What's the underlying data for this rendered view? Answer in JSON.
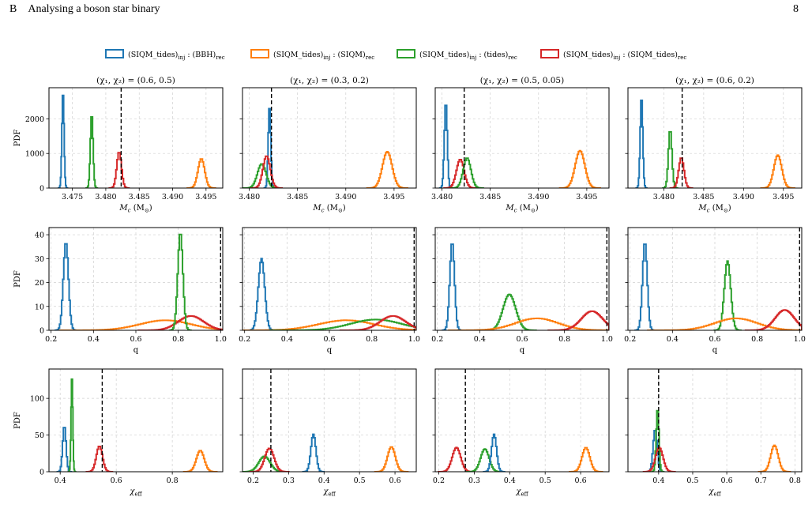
{
  "header": {
    "section_label": "B",
    "section_title": "Analysing a boson star binary",
    "page_number": "8"
  },
  "colors": {
    "bbh": "#1f77b4",
    "siqm": "#ff7f0e",
    "tides": "#2ca02c",
    "siqm_tides": "#d62728",
    "injection_line": "#000000",
    "grid": "#d0d0d0"
  },
  "legend": [
    {
      "key": "bbh",
      "text": "(SIQM_tides)inj : (BBH)rec"
    },
    {
      "key": "siqm",
      "text": "(SIQM_tides)inj : (SIQM)rec"
    },
    {
      "key": "tides",
      "text": "(SIQM_tides)inj : (tides)rec"
    },
    {
      "key": "siqm_tides",
      "text": "(SIQM_tides)inj : (SIQM_tides)rec"
    }
  ],
  "column_titles": [
    "(χ1, χ2) = (0.6, 0.5)",
    "(χ1, χ2) = (0.3, 0.2)",
    "(χ1, χ2) = (0.5, 0.05)",
    "(χ1, χ2) = (0.6, 0.2)"
  ],
  "chart_data": [
    {
      "type": "histogram",
      "row": 0,
      "col": 0,
      "title": "(χ1, χ2) = (0.6, 0.5)",
      "xlabel": "Mc (M⊙)",
      "ylabel": "PDF",
      "xlim": [
        3.4715,
        3.4975
      ],
      "ylim": [
        0,
        2900
      ],
      "xticks": [
        3.475,
        3.48,
        3.485,
        3.49,
        3.495
      ],
      "xtick_labels": [
        "3.475",
        "3.480",
        "3.485",
        "3.490",
        "3.495"
      ],
      "yticks": [
        0,
        1000,
        2000
      ],
      "ytick_labels": [
        "0",
        "1000",
        "2000"
      ],
      "injection": 3.4823,
      "series": [
        {
          "key": "bbh",
          "center": 3.4736,
          "width": 0.00016,
          "peak": 2800
        },
        {
          "key": "tides",
          "center": 3.4779,
          "width": 0.0002,
          "peak": 2150
        },
        {
          "key": "siqm_tides",
          "center": 3.482,
          "width": 0.00035,
          "peak": 1050
        },
        {
          "key": "siqm",
          "center": 3.4943,
          "width": 0.0005,
          "peak": 850
        }
      ]
    },
    {
      "type": "histogram",
      "row": 0,
      "col": 1,
      "title": "(χ1, χ2) = (0.3, 0.2)",
      "xlabel": "Mc (M⊙)",
      "ylabel": "",
      "xlim": [
        3.4793,
        3.4973
      ],
      "ylim": [
        0,
        2900
      ],
      "xticks": [
        3.48,
        3.485,
        3.49,
        3.495
      ],
      "xtick_labels": [
        "3.480",
        "3.485",
        "3.490",
        "3.495"
      ],
      "yticks": [
        0,
        1000,
        2000
      ],
      "ytick_labels": [],
      "injection": 3.4823,
      "series": [
        {
          "key": "bbh",
          "center": 3.4821,
          "width": 0.00013,
          "peak": 2400
        },
        {
          "key": "tides",
          "center": 3.4813,
          "width": 0.00045,
          "peak": 700
        },
        {
          "key": "siqm_tides",
          "center": 3.4818,
          "width": 0.00038,
          "peak": 930
        },
        {
          "key": "siqm",
          "center": 3.4943,
          "width": 0.0005,
          "peak": 1050
        }
      ]
    },
    {
      "type": "histogram",
      "row": 0,
      "col": 2,
      "title": "(χ1, χ2) = (0.5, 0.05)",
      "xlabel": "Mc (M⊙)",
      "ylabel": "",
      "xlim": [
        3.4793,
        3.4973
      ],
      "ylim": [
        0,
        2900
      ],
      "xticks": [
        3.48,
        3.485,
        3.49,
        3.495
      ],
      "xtick_labels": [
        "3.480",
        "3.485",
        "3.490",
        "3.495"
      ],
      "yticks": [
        0,
        1000,
        2000
      ],
      "ytick_labels": [],
      "injection": 3.4823,
      "series": [
        {
          "key": "bbh",
          "center": 3.4804,
          "width": 0.00015,
          "peak": 2500
        },
        {
          "key": "siqm_tides",
          "center": 3.4819,
          "width": 0.0004,
          "peak": 830
        },
        {
          "key": "tides",
          "center": 3.4826,
          "width": 0.0004,
          "peak": 870
        },
        {
          "key": "siqm",
          "center": 3.4943,
          "width": 0.0005,
          "peak": 1080
        }
      ]
    },
    {
      "type": "histogram",
      "row": 0,
      "col": 3,
      "title": "(χ1, χ2) = (0.6, 0.2)",
      "xlabel": "Mc (M⊙)",
      "ylabel": "",
      "xlim": [
        3.4755,
        3.4973
      ],
      "ylim": [
        0,
        2900
      ],
      "xticks": [
        3.48,
        3.485,
        3.49,
        3.495
      ],
      "xtick_labels": [
        "3.480",
        "3.485",
        "3.490",
        "3.495"
      ],
      "yticks": [
        0,
        1000,
        2000
      ],
      "ytick_labels": [],
      "injection": 3.4823,
      "series": [
        {
          "key": "bbh",
          "center": 3.4772,
          "width": 0.00016,
          "peak": 2650
        },
        {
          "key": "tides",
          "center": 3.4808,
          "width": 0.00022,
          "peak": 1700
        },
        {
          "key": "siqm_tides",
          "center": 3.4822,
          "width": 0.00033,
          "peak": 880
        },
        {
          "key": "siqm",
          "center": 3.4943,
          "width": 0.0005,
          "peak": 950
        }
      ]
    },
    {
      "type": "histogram",
      "row": 1,
      "col": 0,
      "title": "",
      "xlabel": "q",
      "ylabel": "PDF",
      "xlim": [
        0.19,
        1.01
      ],
      "ylim": [
        0,
        43
      ],
      "xticks": [
        0.2,
        0.4,
        0.6,
        0.8,
        1.0
      ],
      "xtick_labels": [
        "0.2",
        "0.4",
        "0.6",
        "0.8",
        "1.0"
      ],
      "yticks": [
        0,
        10,
        20,
        30,
        40
      ],
      "ytick_labels": [
        "0",
        "10",
        "20",
        "30",
        "40"
      ],
      "injection": 1.0,
      "series": [
        {
          "key": "bbh",
          "center": 0.27,
          "width": 0.012,
          "peak": 37
        },
        {
          "key": "siqm",
          "center": 0.74,
          "width": 0.12,
          "peak": 4.2
        },
        {
          "key": "siqm_tides",
          "center": 0.86,
          "width": 0.06,
          "peak": 6
        },
        {
          "key": "tides",
          "center": 0.81,
          "width": 0.012,
          "peak": 41
        }
      ]
    },
    {
      "type": "histogram",
      "row": 1,
      "col": 1,
      "title": "",
      "xlabel": "q",
      "ylabel": "",
      "xlim": [
        0.19,
        1.01
      ],
      "ylim": [
        0,
        43
      ],
      "xticks": [
        0.2,
        0.4,
        0.6,
        0.8,
        1.0
      ],
      "xtick_labels": [
        "0.2",
        "0.4",
        "0.6",
        "0.8",
        "1.0"
      ],
      "yticks": [
        0,
        10,
        20,
        30,
        40
      ],
      "ytick_labels": [],
      "injection": 1.0,
      "series": [
        {
          "key": "bbh",
          "center": 0.28,
          "width": 0.015,
          "peak": 30
        },
        {
          "key": "siqm",
          "center": 0.68,
          "width": 0.13,
          "peak": 4.2
        },
        {
          "key": "tides",
          "center": 0.82,
          "width": 0.12,
          "peak": 4.5
        },
        {
          "key": "siqm_tides",
          "center": 0.9,
          "width": 0.06,
          "peak": 6
        }
      ]
    },
    {
      "type": "histogram",
      "row": 1,
      "col": 2,
      "title": "",
      "xlabel": "q",
      "ylabel": "",
      "xlim": [
        0.19,
        1.01
      ],
      "ylim": [
        0,
        43
      ],
      "xticks": [
        0.2,
        0.4,
        0.6,
        0.8,
        1.0
      ],
      "xtick_labels": [
        "0.2",
        "0.4",
        "0.6",
        "0.8",
        "1.0"
      ],
      "yticks": [
        0,
        10,
        20,
        30,
        40
      ],
      "ytick_labels": [],
      "injection": 1.0,
      "series": [
        {
          "key": "bbh",
          "center": 0.27,
          "width": 0.011,
          "peak": 37
        },
        {
          "key": "tides",
          "center": 0.54,
          "width": 0.03,
          "peak": 15
        },
        {
          "key": "siqm",
          "center": 0.67,
          "width": 0.1,
          "peak": 5
        },
        {
          "key": "siqm_tides",
          "center": 0.93,
          "width": 0.05,
          "peak": 8
        }
      ]
    },
    {
      "type": "histogram",
      "row": 1,
      "col": 3,
      "title": "",
      "xlabel": "q",
      "ylabel": "",
      "xlim": [
        0.19,
        1.01
      ],
      "ylim": [
        0,
        43
      ],
      "xticks": [
        0.2,
        0.4,
        0.6,
        0.8,
        1.0
      ],
      "xtick_labels": [
        "0.2",
        "0.4",
        "0.6",
        "0.8",
        "1.0"
      ],
      "yticks": [
        0,
        10,
        20,
        30,
        40
      ],
      "ytick_labels": [],
      "injection": 1.0,
      "series": [
        {
          "key": "bbh",
          "center": 0.27,
          "width": 0.011,
          "peak": 37
        },
        {
          "key": "tides",
          "center": 0.66,
          "width": 0.015,
          "peak": 29
        },
        {
          "key": "siqm",
          "center": 0.7,
          "width": 0.1,
          "peak": 5
        },
        {
          "key": "siqm_tides",
          "center": 0.93,
          "width": 0.045,
          "peak": 8.5
        }
      ]
    },
    {
      "type": "histogram",
      "row": 2,
      "col": 0,
      "title": "",
      "xlabel": "χeff",
      "ylabel": "PDF",
      "xlim": [
        0.36,
        0.98
      ],
      "ylim": [
        0,
        140
      ],
      "xticks": [
        0.4,
        0.6,
        0.8
      ],
      "xtick_labels": [
        "0.4",
        "0.6",
        "0.8"
      ],
      "yticks": [
        0,
        50,
        100
      ],
      "ytick_labels": [
        "0",
        "50",
        "100"
      ],
      "injection": 0.55,
      "series": [
        {
          "key": "bbh",
          "center": 0.415,
          "width": 0.006,
          "peak": 63
        },
        {
          "key": "tides",
          "center": 0.442,
          "width": 0.003,
          "peak": 132
        },
        {
          "key": "siqm_tides",
          "center": 0.54,
          "width": 0.011,
          "peak": 35
        },
        {
          "key": "siqm",
          "center": 0.9,
          "width": 0.014,
          "peak": 29
        }
      ]
    },
    {
      "type": "histogram",
      "row": 2,
      "col": 1,
      "title": "",
      "xlabel": "χeff",
      "ylabel": "",
      "xlim": [
        0.17,
        0.66
      ],
      "ylim": [
        0,
        140
      ],
      "xticks": [
        0.2,
        0.3,
        0.4,
        0.5,
        0.6
      ],
      "xtick_labels": [
        "0.2",
        "0.3",
        "0.4",
        "0.5",
        "0.6"
      ],
      "yticks": [
        0,
        50,
        100
      ],
      "ytick_labels": [],
      "injection": 0.25,
      "series": [
        {
          "key": "tides",
          "center": 0.232,
          "width": 0.016,
          "peak": 21
        },
        {
          "key": "siqm_tides",
          "center": 0.246,
          "width": 0.013,
          "peak": 32
        },
        {
          "key": "bbh",
          "center": 0.37,
          "width": 0.007,
          "peak": 51
        },
        {
          "key": "siqm",
          "center": 0.59,
          "width": 0.011,
          "peak": 34
        }
      ]
    },
    {
      "type": "histogram",
      "row": 2,
      "col": 2,
      "title": "",
      "xlabel": "χeff",
      "ylabel": "",
      "xlim": [
        0.19,
        0.68
      ],
      "ylim": [
        0,
        140
      ],
      "xticks": [
        0.2,
        0.3,
        0.4,
        0.5,
        0.6
      ],
      "xtick_labels": [
        "0.2",
        "0.3",
        "0.4",
        "0.5",
        "0.6"
      ],
      "yticks": [
        0,
        50,
        100
      ],
      "ytick_labels": [],
      "injection": 0.275,
      "series": [
        {
          "key": "siqm_tides",
          "center": 0.25,
          "width": 0.012,
          "peak": 33
        },
        {
          "key": "tides",
          "center": 0.33,
          "width": 0.012,
          "peak": 31
        },
        {
          "key": "bbh",
          "center": 0.356,
          "width": 0.007,
          "peak": 51
        },
        {
          "key": "siqm",
          "center": 0.615,
          "width": 0.011,
          "peak": 33
        }
      ]
    },
    {
      "type": "histogram",
      "row": 2,
      "col": 3,
      "title": "",
      "xlabel": "χeff",
      "ylabel": "",
      "xlim": [
        0.31,
        0.82
      ],
      "ylim": [
        0,
        140
      ],
      "xticks": [
        0.4,
        0.5,
        0.6,
        0.7,
        0.8
      ],
      "xtick_labels": [
        "0.4",
        "0.5",
        "0.6",
        "0.7",
        "0.8"
      ],
      "yticks": [
        0,
        50,
        100
      ],
      "ytick_labels": [],
      "injection": 0.4,
      "series": [
        {
          "key": "bbh",
          "center": 0.39,
          "width": 0.006,
          "peak": 58
        },
        {
          "key": "tides",
          "center": 0.397,
          "width": 0.004,
          "peak": 87
        },
        {
          "key": "siqm_tides",
          "center": 0.402,
          "width": 0.011,
          "peak": 33
        },
        {
          "key": "siqm",
          "center": 0.74,
          "width": 0.011,
          "peak": 36
        }
      ]
    }
  ]
}
